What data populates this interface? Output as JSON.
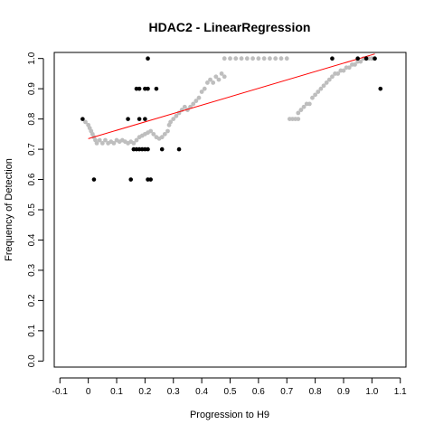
{
  "chart_data": {
    "type": "scatter",
    "title": "HDAC2 - LinearRegression",
    "xlabel": "Progression to H9",
    "ylabel": "Frequency of Detection",
    "xlim": [
      -0.12,
      1.12
    ],
    "ylim": [
      -0.02,
      1.02
    ],
    "x_ticks": [
      -0.1,
      0.0,
      0.1,
      0.2,
      0.3,
      0.4,
      0.5,
      0.6,
      0.7,
      0.8,
      0.9,
      1.0,
      1.1
    ],
    "x_tick_labels": [
      "-0.1",
      "0",
      "0.1",
      "0.2",
      "0.3",
      "0.4",
      "0.5",
      "0.6",
      "0.7",
      "0.8",
      "0.9",
      "1.0",
      "1.1"
    ],
    "y_ticks": [
      0.0,
      0.1,
      0.2,
      0.3,
      0.4,
      0.5,
      0.6,
      0.7,
      0.8,
      0.9,
      1.0
    ],
    "y_tick_labels": [
      "0.0",
      "0.1",
      "0.2",
      "0.3",
      "0.4",
      "0.5",
      "0.6",
      "0.7",
      "0.8",
      "0.9",
      "1.0"
    ],
    "grid": false,
    "legend": "none",
    "colors": {
      "observed": "#000000",
      "smoothed": "#bebebe",
      "fit": "#ff0000"
    },
    "series": [
      {
        "kind": "points",
        "color": "#000000",
        "points": [
          [
            -0.02,
            0.8
          ],
          [
            0.02,
            0.6
          ],
          [
            0.14,
            0.8
          ],
          [
            0.15,
            0.6
          ],
          [
            0.16,
            0.7
          ],
          [
            0.17,
            0.9
          ],
          [
            0.17,
            0.7
          ],
          [
            0.18,
            0.8
          ],
          [
            0.18,
            0.9
          ],
          [
            0.18,
            0.7
          ],
          [
            0.19,
            0.7
          ],
          [
            0.2,
            0.9
          ],
          [
            0.2,
            0.8
          ],
          [
            0.2,
            0.7
          ],
          [
            0.21,
            1.0
          ],
          [
            0.21,
            0.9
          ],
          [
            0.21,
            0.6
          ],
          [
            0.21,
            0.7
          ],
          [
            0.22,
            0.6
          ],
          [
            0.24,
            0.9
          ],
          [
            0.26,
            0.7
          ],
          [
            0.32,
            0.7
          ],
          [
            0.86,
            1.0
          ],
          [
            0.95,
            1.0
          ],
          [
            0.98,
            1.0
          ],
          [
            1.01,
            1.0
          ],
          [
            1.03,
            0.9
          ]
        ]
      },
      {
        "kind": "smooth",
        "color": "#bebebe",
        "points": [
          [
            -0.01,
            0.79
          ],
          [
            0.0,
            0.78
          ],
          [
            0.005,
            0.77
          ],
          [
            0.01,
            0.76
          ],
          [
            0.015,
            0.75
          ],
          [
            0.02,
            0.74
          ],
          [
            0.025,
            0.73
          ],
          [
            0.03,
            0.72
          ],
          [
            0.04,
            0.73
          ],
          [
            0.05,
            0.72
          ],
          [
            0.06,
            0.73
          ],
          [
            0.07,
            0.72
          ],
          [
            0.08,
            0.725
          ],
          [
            0.09,
            0.72
          ],
          [
            0.1,
            0.73
          ],
          [
            0.11,
            0.725
          ],
          [
            0.12,
            0.73
          ],
          [
            0.13,
            0.725
          ],
          [
            0.14,
            0.72
          ],
          [
            0.15,
            0.725
          ],
          [
            0.16,
            0.72
          ],
          [
            0.17,
            0.73
          ],
          [
            0.18,
            0.74
          ],
          [
            0.19,
            0.745
          ],
          [
            0.2,
            0.75
          ],
          [
            0.21,
            0.755
          ],
          [
            0.22,
            0.76
          ],
          [
            0.23,
            0.75
          ],
          [
            0.24,
            0.74
          ],
          [
            0.25,
            0.735
          ],
          [
            0.26,
            0.74
          ],
          [
            0.27,
            0.75
          ],
          [
            0.28,
            0.76
          ],
          [
            0.285,
            0.78
          ],
          [
            0.29,
            0.79
          ],
          [
            0.3,
            0.8
          ],
          [
            0.31,
            0.81
          ],
          [
            0.32,
            0.82
          ],
          [
            0.33,
            0.83
          ],
          [
            0.34,
            0.84
          ],
          [
            0.35,
            0.83
          ],
          [
            0.36,
            0.84
          ],
          [
            0.37,
            0.85
          ],
          [
            0.38,
            0.86
          ],
          [
            0.39,
            0.87
          ],
          [
            0.4,
            0.89
          ],
          [
            0.41,
            0.9
          ],
          [
            0.42,
            0.92
          ],
          [
            0.43,
            0.93
          ],
          [
            0.44,
            0.92
          ],
          [
            0.45,
            0.94
          ],
          [
            0.46,
            0.93
          ],
          [
            0.47,
            0.95
          ],
          [
            0.48,
            0.94
          ],
          [
            0.48,
            1.0
          ],
          [
            0.5,
            1.0
          ],
          [
            0.52,
            1.0
          ],
          [
            0.54,
            1.0
          ],
          [
            0.56,
            1.0
          ],
          [
            0.58,
            1.0
          ],
          [
            0.6,
            1.0
          ],
          [
            0.62,
            1.0
          ],
          [
            0.64,
            1.0
          ],
          [
            0.66,
            1.0
          ],
          [
            0.68,
            1.0
          ],
          [
            0.7,
            1.0
          ],
          [
            0.71,
            0.8
          ],
          [
            0.72,
            0.8
          ],
          [
            0.73,
            0.8
          ],
          [
            0.74,
            0.8
          ],
          [
            0.74,
            0.82
          ],
          [
            0.75,
            0.83
          ],
          [
            0.76,
            0.84
          ],
          [
            0.77,
            0.85
          ],
          [
            0.78,
            0.85
          ],
          [
            0.79,
            0.87
          ],
          [
            0.8,
            0.88
          ],
          [
            0.81,
            0.89
          ],
          [
            0.82,
            0.9
          ],
          [
            0.83,
            0.91
          ],
          [
            0.84,
            0.92
          ],
          [
            0.85,
            0.93
          ],
          [
            0.86,
            0.94
          ],
          [
            0.87,
            0.95
          ],
          [
            0.88,
            0.95
          ],
          [
            0.89,
            0.96
          ],
          [
            0.9,
            0.96
          ],
          [
            0.91,
            0.97
          ],
          [
            0.92,
            0.97
          ],
          [
            0.93,
            0.98
          ],
          [
            0.94,
            0.98
          ],
          [
            0.95,
            0.99
          ],
          [
            0.96,
            0.99
          ],
          [
            0.97,
            1.0
          ],
          [
            0.98,
            1.0
          ],
          [
            0.99,
            1.0
          ],
          [
            1.0,
            1.0
          ],
          [
            1.01,
            1.0
          ]
        ]
      },
      {
        "kind": "regression",
        "color": "#ff0000",
        "points": [
          [
            0.0,
            0.735
          ],
          [
            1.01,
            1.015
          ]
        ]
      }
    ]
  }
}
